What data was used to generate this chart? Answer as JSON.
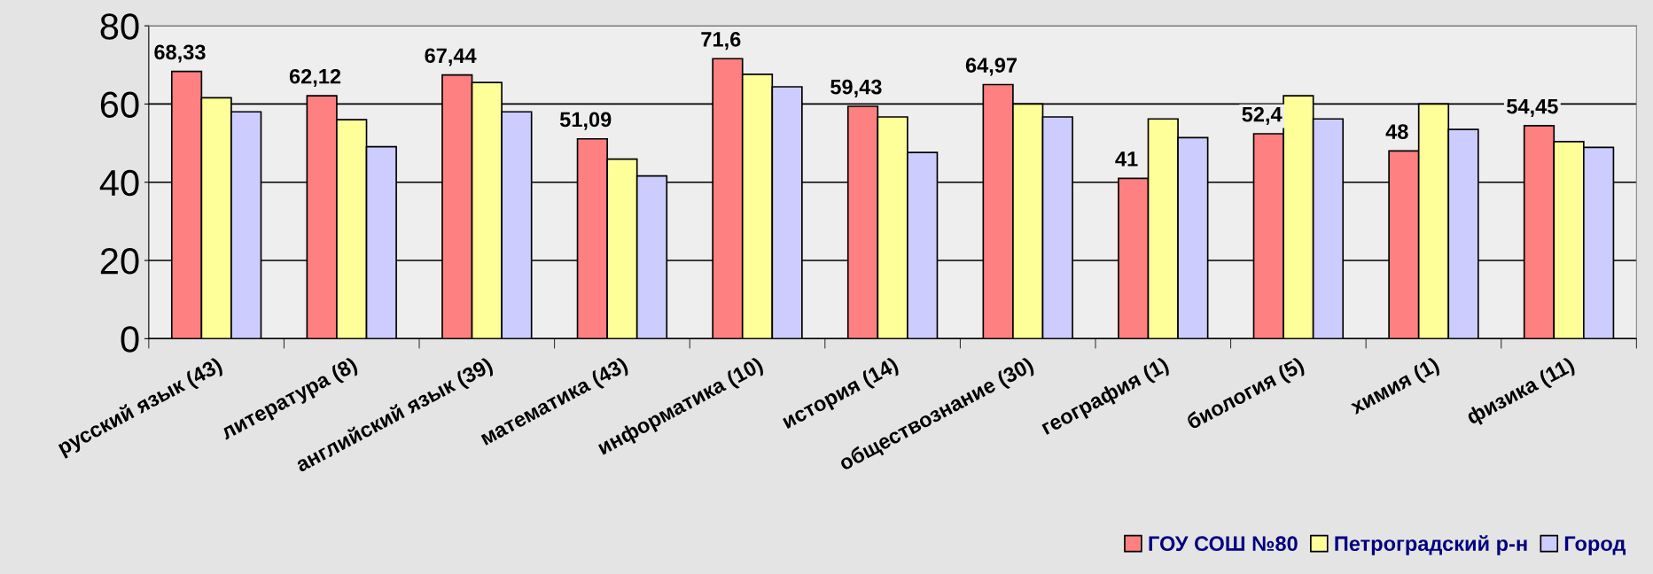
{
  "chart_data": {
    "type": "bar",
    "categories": [
      "русский язык (43)",
      "литература (8)",
      "английский язык (39)",
      "математика (43)",
      "информатика (10)",
      "история (14)",
      "обществознание (30)",
      "география (1)",
      "биология (5)",
      "химия (1)",
      "физика (11)"
    ],
    "series": [
      {
        "name": "ГОУ СОШ №80",
        "color": "#ff8080",
        "values": [
          68.33,
          62.12,
          67.44,
          51.09,
          71.6,
          59.43,
          64.97,
          41,
          52.4,
          48,
          54.45
        ],
        "value_labels": [
          "68,33",
          "62,12",
          "67,44",
          "51,09",
          "71,6",
          "59,43",
          "64,97",
          "41",
          "52,4",
          "48",
          "54,45"
        ]
      },
      {
        "name": "Петроградский р-н",
        "color": "#ffff99",
        "values": [
          61.6,
          56.0,
          65.5,
          45.9,
          67.6,
          56.7,
          60.0,
          56.2,
          62.1,
          60.0,
          50.4
        ]
      },
      {
        "name": "Город",
        "color": "#ccccff",
        "values": [
          58.0,
          49.1,
          58.0,
          41.6,
          64.4,
          47.6,
          56.7,
          51.4,
          56.2,
          53.5,
          48.9
        ]
      }
    ],
    "ylim": [
      0,
      80
    ],
    "yticks": [
      0,
      20,
      40,
      60,
      80
    ],
    "grid": "y",
    "legend": "bottom right"
  }
}
